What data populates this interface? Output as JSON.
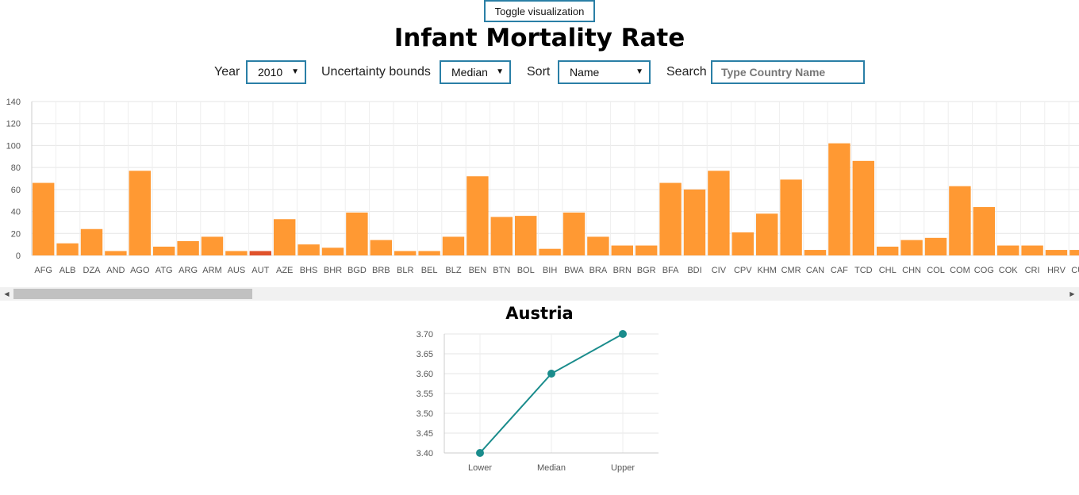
{
  "toggle_label": "Toggle visualization",
  "title": "Infant Mortality Rate",
  "controls": {
    "year_label": "Year",
    "year_value": "2010",
    "bounds_label": "Uncertainty bounds",
    "bounds_value": "Median",
    "sort_label": "Sort",
    "sort_value": "Name",
    "search_label": "Search",
    "search_placeholder": "Type Country Name"
  },
  "colors": {
    "bar": "#ff9933",
    "highlight": "#e0522b",
    "line": "#1a8c8c",
    "accent_border": "#2a7fa6"
  },
  "chart_data": [
    {
      "type": "bar",
      "categories": [
        "AFG",
        "ALB",
        "DZA",
        "AND",
        "AGO",
        "ATG",
        "ARG",
        "ARM",
        "AUS",
        "AUT",
        "AZE",
        "BHS",
        "BHR",
        "BGD",
        "BRB",
        "BLR",
        "BEL",
        "BLZ",
        "BEN",
        "BTN",
        "BOL",
        "BIH",
        "BWA",
        "BRA",
        "BRN",
        "BGR",
        "BFA",
        "BDI",
        "CIV",
        "CPV",
        "KHM",
        "CMR",
        "CAN",
        "CAF",
        "TCD",
        "CHL",
        "CHN",
        "COL",
        "COM",
        "COG",
        "COK",
        "CRI",
        "HRV",
        "CUB"
      ],
      "values": [
        66,
        11,
        24,
        4,
        77,
        8,
        13,
        17,
        4,
        4,
        33,
        10,
        7,
        39,
        14,
        4,
        4,
        17,
        72,
        35,
        36,
        6,
        39,
        17,
        9,
        9,
        66,
        60,
        77,
        21,
        38,
        69,
        5,
        102,
        86,
        8,
        14,
        16,
        63,
        44,
        9,
        9,
        5,
        5
      ],
      "highlight": "AUT",
      "ylim": [
        0,
        140
      ],
      "yticks": [
        0,
        20,
        40,
        60,
        80,
        100,
        120,
        140
      ],
      "grid": true
    },
    {
      "type": "line",
      "title": "Austria",
      "categories": [
        "Lower",
        "Median",
        "Upper"
      ],
      "values": [
        3.4,
        3.6,
        3.7
      ],
      "ylim": [
        3.4,
        3.7
      ],
      "yticks": [
        "3.40",
        "3.45",
        "3.50",
        "3.55",
        "3.60",
        "3.65",
        "3.70"
      ],
      "grid": true
    }
  ]
}
